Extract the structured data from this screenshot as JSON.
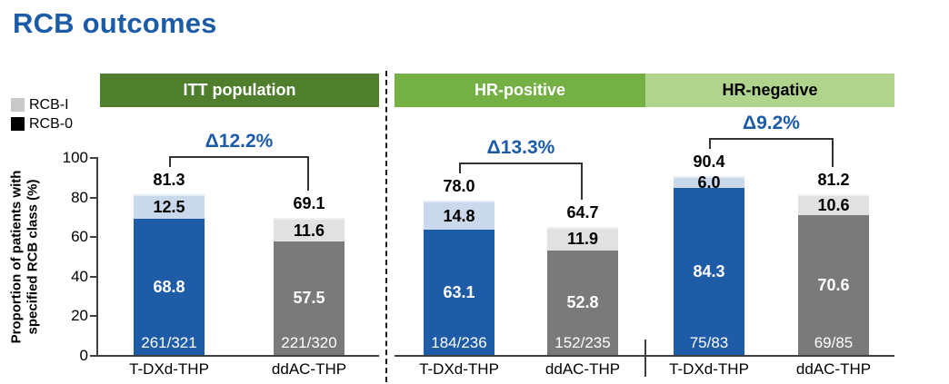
{
  "title": "RCB outcomes",
  "colors": {
    "title": "#1b5ba8",
    "delta": "#1b5ba8",
    "tdxd_main": "#1e5ca7",
    "tdxd_light": "#c9d8ea",
    "ddac_main": "#7a7a7a",
    "ddac_light": "#e1e1e1",
    "header_itt_bg": "#4f7e2d",
    "header_hrpos_bg": "#74b044",
    "header_hrneg_bg": "#b1d48c",
    "axis": "#3f3f3f"
  },
  "legend": {
    "items": [
      {
        "label": "RCB-I",
        "swatch": "#c9c9c9"
      },
      {
        "label": "RCB-0",
        "swatch": "#000000"
      }
    ]
  },
  "y_axis": {
    "title_lines": "Proportion of patients with\nspecified RCB class (%)",
    "ticks": [
      0,
      20,
      40,
      60,
      80,
      100
    ],
    "max": 100
  },
  "chart_data": {
    "type": "bar",
    "stacked": true,
    "ylabel": "Proportion of patients with specified RCB class (%)",
    "ylim": [
      0,
      100
    ],
    "stack_legend": [
      "RCB-I",
      "RCB-0"
    ],
    "panels": [
      {
        "header": "ITT population",
        "header_bg_key": "header_itt_bg",
        "header_text_color": "#ffffff",
        "delta_label": "Δ12.2%",
        "bars": [
          {
            "category": "T-DXd-THP",
            "palette": "tdxd",
            "total": 81.3,
            "total_label": "81.3",
            "rcb0": 68.8,
            "rcb0_label": "68.8",
            "rcb1": 12.5,
            "rcb1_label": "12.5",
            "fraction": "261/321"
          },
          {
            "category": "ddAC-THP",
            "palette": "ddac",
            "total": 69.1,
            "total_label": "69.1",
            "rcb0": 57.5,
            "rcb0_label": "57.5",
            "rcb1": 11.6,
            "rcb1_label": "11.6",
            "fraction": "221/320"
          }
        ]
      },
      {
        "header": "HR-positive",
        "header_bg_key": "header_hrpos_bg",
        "header_text_color": "#ffffff",
        "delta_label": "Δ13.3%",
        "bars": [
          {
            "category": "T-DXd-THP",
            "palette": "tdxd",
            "total": 78.0,
            "total_label": "78.0",
            "rcb0": 63.1,
            "rcb0_label": "63.1",
            "rcb1": 14.8,
            "rcb1_label": "14.8",
            "fraction": "184/236"
          },
          {
            "category": "ddAC-THP",
            "palette": "ddac",
            "total": 64.7,
            "total_label": "64.7",
            "rcb0": 52.8,
            "rcb0_label": "52.8",
            "rcb1": 11.9,
            "rcb1_label": "11.9",
            "fraction": "152/235"
          }
        ]
      },
      {
        "header": "HR-negative",
        "header_bg_key": "header_hrneg_bg",
        "header_text_color": "#000000",
        "delta_label": "Δ9.2%",
        "bars": [
          {
            "category": "T-DXd-THP",
            "palette": "tdxd",
            "total": 90.4,
            "total_label": "90.4",
            "rcb0": 84.3,
            "rcb0_label": "84.3",
            "rcb1": 6.0,
            "rcb1_label": "6.0",
            "fraction": "75/83"
          },
          {
            "category": "ddAC-THP",
            "palette": "ddac",
            "total": 81.2,
            "total_label": "81.2",
            "rcb0": 70.6,
            "rcb0_label": "70.6",
            "rcb1": 10.6,
            "rcb1_label": "10.6",
            "fraction": "69/85"
          }
        ]
      }
    ]
  }
}
